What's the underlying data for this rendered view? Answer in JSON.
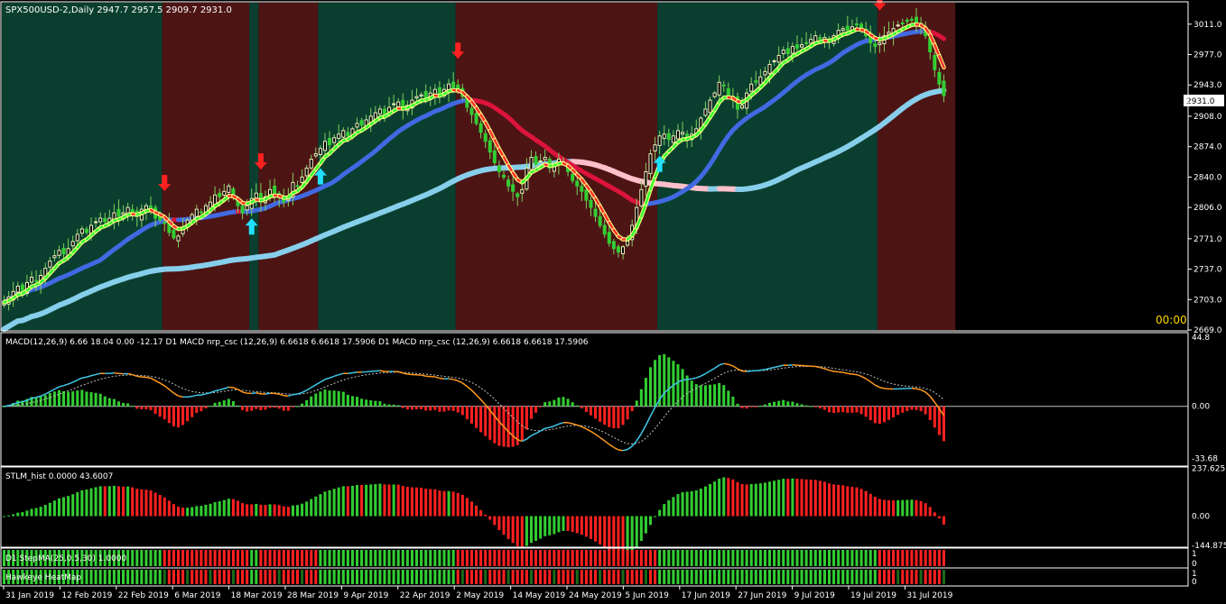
{
  "chart_data": [
    {
      "type": "candlestick",
      "title": "SPX500USD-2,Daily 2947.7 2957.5 2909.7 2931.0",
      "y_ticks": [
        3011.0,
        2977.0,
        2943.0,
        2908.0,
        2874.0,
        2840.0,
        2806.0,
        2771.0,
        2737.0,
        2703.0,
        2669.0
      ],
      "ylim": [
        2669.0,
        3035.0
      ],
      "current_price": "2931.0",
      "timer": "00:00",
      "x_labels": [
        "31 Jan 2019",
        "12 Feb 2019",
        "22 Feb 2019",
        "6 Mar 2019",
        "18 Mar 2019",
        "28 Mar 2019",
        "9 Apr 2019",
        "22 Apr 2019",
        "2 May 2019",
        "14 May 2019",
        "24 May 2019",
        "5 Jun 2019",
        "17 Jun 2019",
        "27 Jun 2019",
        "9 Jul 2019",
        "19 Jul 2019",
        "31 Jul 2019"
      ],
      "regimes": [
        {
          "from": 0,
          "to": 35,
          "state": "bull"
        },
        {
          "from": 35,
          "to": 54,
          "state": "bear"
        },
        {
          "from": 54,
          "to": 56,
          "state": "bull"
        },
        {
          "from": 56,
          "to": 69,
          "state": "bear"
        },
        {
          "from": 69,
          "to": 99,
          "state": "bull"
        },
        {
          "from": 99,
          "to": 143,
          "state": "bear"
        },
        {
          "from": 143,
          "to": 191,
          "state": "bull"
        },
        {
          "from": 191,
          "to": 208,
          "state": "bear"
        }
      ],
      "closes": [
        2700,
        2706,
        2712,
        2718,
        2712,
        2722,
        2728,
        2724,
        2730,
        2738,
        2746,
        2752,
        2758,
        2754,
        2760,
        2768,
        2776,
        2782,
        2778,
        2786,
        2790,
        2794,
        2790,
        2794,
        2800,
        2796,
        2800,
        2806,
        2800,
        2796,
        2804,
        2808,
        2806,
        2794,
        2792,
        2788,
        2778,
        2772,
        2774,
        2784,
        2792,
        2798,
        2804,
        2800,
        2808,
        2812,
        2820,
        2818,
        2824,
        2830,
        2818,
        2808,
        2800,
        2808,
        2816,
        2822,
        2812,
        2818,
        2826,
        2822,
        2818,
        2812,
        2818,
        2834,
        2830,
        2840,
        2850,
        2860,
        2866,
        2872,
        2880,
        2876,
        2884,
        2888,
        2892,
        2886,
        2894,
        2900,
        2898,
        2904,
        2908,
        2912,
        2916,
        2910,
        2918,
        2922,
        2924,
        2916,
        2920,
        2926,
        2930,
        2932,
        2928,
        2934,
        2938,
        2930,
        2938,
        2944,
        2940,
        2936,
        2930,
        2918,
        2910,
        2900,
        2890,
        2880,
        2868,
        2856,
        2846,
        2840,
        2830,
        2824,
        2818,
        2826,
        2850,
        2862,
        2854,
        2858,
        2862,
        2850,
        2854,
        2860,
        2856,
        2846,
        2836,
        2830,
        2824,
        2814,
        2806,
        2796,
        2786,
        2776,
        2766,
        2760,
        2756,
        2762,
        2770,
        2786,
        2806,
        2826,
        2846,
        2866,
        2876,
        2886,
        2888,
        2882,
        2886,
        2892,
        2890,
        2884,
        2888,
        2894,
        2906,
        2916,
        2926,
        2934,
        2946,
        2942,
        2930,
        2926,
        2916,
        2920,
        2934,
        2944,
        2946,
        2952,
        2958,
        2966,
        2970,
        2976,
        2982,
        2978,
        2986,
        2984,
        2988,
        2990,
        2994,
        2998,
        2994,
        2996,
        2992,
        2998,
        3004,
        3006,
        3004,
        3008,
        3011,
        3004,
        2998,
        2990,
        2986,
        2990,
        2998,
        3002,
        3006,
        3010,
        3012,
        3014,
        3016,
        3012,
        3008,
        2998,
        2980,
        2960,
        2944,
        2931
      ]
    },
    {
      "type": "line",
      "title": "MACD(12,26,9) 6.66 18.04 0.00 -12.17 D1 MACD nrp_csc (12,26,9) 6.6618 6.6618 17.5906 D1 MACD nrp_csc (12,26,9) 6.6618 6.6618 17.5906",
      "y_ticks": [
        44.8,
        0.0,
        -33.68
      ],
      "ylim": [
        -38.0,
        47.0
      ]
    },
    {
      "type": "bar",
      "title": "STLM_hist 0.0000 43.6007",
      "y_ticks": [
        237.625,
        0.0,
        -144.875
      ],
      "ylim": [
        -150.0,
        240.0
      ]
    },
    {
      "type": "heatmap",
      "title": "D1 StepMA(25,0.5,30) 1.0000",
      "y_ticks": [
        "1",
        "0"
      ]
    },
    {
      "type": "heatmap",
      "title": "Hawkeye HeatMap",
      "y_ticks": [
        "1",
        "0"
      ]
    }
  ],
  "colors": {
    "bull_bg": "#0a3f2f",
    "bear_bg": "#4d1414",
    "up_candle": "#f0f0c0",
    "down_candle": "#32cd32",
    "fast_ma_up": "#32ff32",
    "fast_ma_down": "#ff3030",
    "mid_ma_up": "#4169e1",
    "mid_ma_down": "#dc143c",
    "slow_ma_up": "#87ceeb",
    "slow_ma_down": "#ffc0cb",
    "hist_up": "#32cd32",
    "hist_down": "#ff2020",
    "macd_line": "#40c8e8",
    "macd_line_down": "#ff9a20",
    "signal_line": "#c0c0c0",
    "arrow_sell": "#ff2020",
    "arrow_buy": "#20e0ff",
    "timer": "#ffd700"
  }
}
